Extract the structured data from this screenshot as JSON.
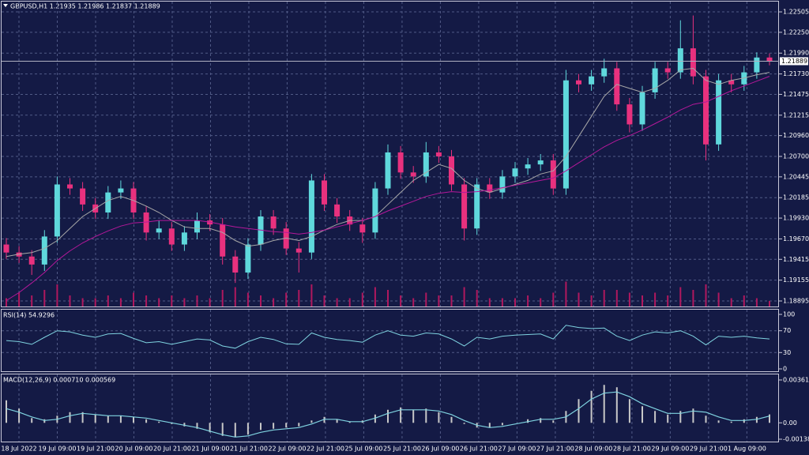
{
  "chart_data": [
    {
      "type": "candlestick",
      "title": "GBPUSD,H1  1.21935 1.21986 1.21837 1.21889",
      "open": [
        1.196,
        1.195,
        1.1945,
        1.1935,
        1.197,
        1.2035,
        1.203,
        1.201,
        1.2,
        1.2025,
        1.203,
        1.2,
        1.1975,
        1.198,
        1.196,
        1.1975,
        1.199,
        1.1985,
        1.1945,
        1.1925,
        1.196,
        1.1995,
        1.198,
        1.1955,
        1.195,
        1.204,
        1.201,
        1.1995,
        1.1985,
        1.1975,
        1.203,
        1.2075,
        1.205,
        1.2045,
        1.2075,
        1.207,
        1.2035,
        1.198,
        1.2035,
        1.2025,
        1.2045,
        1.2055,
        1.206,
        1.2065,
        1.203,
        1.2165,
        1.216,
        1.217,
        1.218,
        1.2135,
        1.211,
        1.215,
        1.218,
        1.2175,
        1.2205,
        1.217,
        1.2085,
        1.2165,
        1.216,
        1.2175,
        1.21935
      ],
      "high": [
        1.1968,
        1.1958,
        1.1953,
        1.1978,
        1.2045,
        1.2043,
        1.2038,
        1.2018,
        1.2033,
        1.204,
        1.2038,
        1.2008,
        1.199,
        1.1988,
        1.1983,
        1.2,
        1.1998,
        1.1993,
        1.1953,
        1.1968,
        1.2003,
        1.2003,
        1.1988,
        1.1963,
        1.2048,
        1.2048,
        1.2018,
        1.2003,
        1.1993,
        1.2038,
        1.2085,
        1.2083,
        1.2058,
        1.2088,
        1.2083,
        1.2078,
        1.2043,
        1.2043,
        1.2043,
        1.2053,
        1.2063,
        1.2068,
        1.2073,
        1.2073,
        1.2178,
        1.2173,
        1.2178,
        1.2192,
        1.2188,
        1.2143,
        1.2158,
        1.2188,
        1.2188,
        1.224,
        1.2246,
        1.2178,
        1.2173,
        1.2173,
        1.2183,
        1.22,
        1.21986
      ],
      "low": [
        1.1942,
        1.1937,
        1.1922,
        1.1927,
        1.1962,
        1.2022,
        1.2002,
        1.1992,
        1.1992,
        1.2017,
        1.1992,
        1.1965,
        1.1967,
        1.1952,
        1.1952,
        1.1967,
        1.1977,
        1.1935,
        1.1912,
        1.1917,
        1.1952,
        1.1972,
        1.1947,
        1.1925,
        1.1942,
        1.2002,
        1.1987,
        1.1977,
        1.1962,
        1.1967,
        1.2022,
        1.2042,
        1.2037,
        1.2037,
        1.2062,
        1.2027,
        1.1965,
        1.1972,
        1.2017,
        1.2017,
        1.2037,
        1.2047,
        1.2052,
        1.2022,
        1.2022,
        1.215,
        1.2152,
        1.2162,
        1.2127,
        1.21,
        1.2102,
        1.2142,
        1.2167,
        1.2167,
        1.216,
        1.2065,
        1.2077,
        1.215,
        1.2152,
        1.2167,
        1.21837
      ],
      "close": [
        1.195,
        1.1945,
        1.1935,
        1.197,
        1.2035,
        1.203,
        1.201,
        1.2,
        1.2025,
        1.203,
        1.2,
        1.1975,
        1.198,
        1.196,
        1.1975,
        1.199,
        1.1985,
        1.1945,
        1.1925,
        1.196,
        1.1995,
        1.198,
        1.1955,
        1.195,
        1.204,
        1.201,
        1.1995,
        1.1985,
        1.1975,
        1.203,
        1.2075,
        1.205,
        1.2045,
        1.2075,
        1.207,
        1.2035,
        1.198,
        1.2035,
        1.2025,
        1.2045,
        1.2055,
        1.206,
        1.2065,
        1.203,
        1.2165,
        1.216,
        1.217,
        1.218,
        1.2135,
        1.211,
        1.215,
        1.218,
        1.2175,
        1.2205,
        1.217,
        1.2085,
        1.2165,
        1.216,
        1.2175,
        1.21935,
        1.21889
      ],
      "volume": [
        3,
        5,
        4,
        6,
        8,
        4,
        3,
        3,
        4,
        3,
        5,
        4,
        3,
        4,
        3,
        4,
        3,
        6,
        7,
        5,
        4,
        3,
        5,
        6,
        8,
        4,
        3,
        3,
        5,
        7,
        6,
        4,
        3,
        5,
        4,
        4,
        7,
        6,
        3,
        3,
        3,
        4,
        3,
        5,
        9,
        5,
        4,
        6,
        6,
        5,
        4,
        5,
        4,
        7,
        6,
        8,
        5,
        3,
        4,
        3,
        2
      ],
      "overlays": [
        {
          "color": "#a8a8a8",
          "values": [
            1.1945,
            1.1948,
            1.195,
            1.1955,
            1.1965,
            1.198,
            1.1995,
            1.2005,
            1.2015,
            1.202,
            1.2015,
            1.2008,
            1.2,
            1.199,
            1.1982,
            1.198,
            1.198,
            1.1975,
            1.1965,
            1.1958,
            1.196,
            1.1965,
            1.1968,
            1.1965,
            1.197,
            1.1978,
            1.1985,
            1.199,
            1.199,
            1.1995,
            1.201,
            1.2025,
            1.204,
            1.205,
            1.206,
            1.2055,
            1.204,
            1.203,
            1.2025,
            1.203,
            1.2035,
            1.204,
            1.2048,
            1.2052,
            1.207,
            1.2095,
            1.212,
            1.2145,
            1.216,
            1.2155,
            1.215,
            1.2155,
            1.2165,
            1.2178,
            1.218,
            1.2165,
            1.216,
            1.2165,
            1.2168,
            1.2172,
            1.2175
          ]
        },
        {
          "color": "#b5189a",
          "values": [
            1.189,
            1.19,
            1.1912,
            1.1925,
            1.194,
            1.1952,
            1.1962,
            1.197,
            1.1977,
            1.1983,
            1.1987,
            1.1988,
            1.199,
            1.199,
            1.199,
            1.199,
            1.1988,
            1.1985,
            1.1982,
            1.198,
            1.1978,
            1.1976,
            1.1975,
            1.1973,
            1.1975,
            1.1978,
            1.1982,
            1.1986,
            1.199,
            1.1995,
            1.2002,
            1.2008,
            1.2014,
            1.202,
            1.2024,
            1.2026,
            1.2025,
            1.2026,
            1.2028,
            1.2031,
            1.2034,
            1.2037,
            1.204,
            1.2043,
            1.2052,
            1.2062,
            1.2072,
            1.2082,
            1.209,
            1.2096,
            1.2103,
            1.2111,
            1.2119,
            1.2128,
            1.2135,
            1.2138,
            1.2145,
            1.2152,
            1.2158,
            1.2164,
            1.217
          ]
        }
      ],
      "up_color": "#5fd8dc",
      "down_color": "#e8317e",
      "volume_color": "#b0185e",
      "ylim": [
        1.18826,
        1.22604
      ],
      "yticks": [
        1.22505,
        {
          "value": 1.2225,
          "label": "1.22250"
        },
        {
          "value": 1.2199,
          "label": "1.21990"
        },
        {
          "value": 1.2173,
          "label": "1.21730"
        },
        1.21475,
        1.21215,
        {
          "value": 1.2096,
          "label": "1.20960"
        },
        {
          "value": 1.207,
          "label": "1.20700"
        },
        1.20445,
        1.20185,
        {
          "value": 1.1993,
          "label": "1.19930"
        },
        {
          "value": 1.1967,
          "label": "1.19670"
        },
        1.19415,
        1.19155,
        1.18895
      ],
      "x_labels": [
        "18 Jul 2022",
        "19 Jul 09:00",
        "19 Jul 21:00",
        "20 Jul 09:00",
        "20 Jul 21:00",
        "21 Jul 09:00",
        "21 Jul 21:00",
        "22 Jul 09:00",
        "22 Jul 21:00",
        "25 Jul 09:00",
        "25 Jul 21:00",
        "26 Jul 09:00",
        "26 Jul 21:00",
        "27 Jul 09:00",
        "27 Jul 21:00",
        "28 Jul 09:00",
        "28 Jul 21:00",
        "29 Jul 09:00",
        "29 Jul 21:00",
        "1 Aug 09:00"
      ],
      "grid": true
    },
    {
      "type": "line",
      "title": "RSI(14) 54.9296",
      "color": "#7fd3e0",
      "values": [
        52,
        50,
        45,
        58,
        70,
        68,
        62,
        58,
        64,
        65,
        56,
        48,
        50,
        45,
        50,
        55,
        53,
        42,
        38,
        50,
        58,
        54,
        46,
        45,
        66,
        58,
        54,
        52,
        49,
        62,
        70,
        62,
        60,
        66,
        64,
        55,
        42,
        58,
        55,
        60,
        62,
        63,
        64,
        55,
        80,
        76,
        74,
        75,
        60,
        52,
        62,
        68,
        66,
        70,
        60,
        44,
        60,
        58,
        60,
        57,
        54.9296
      ],
      "ylim": [
        0,
        100
      ],
      "yticks": [
        100,
        70,
        30,
        0
      ]
    },
    {
      "type": "macd",
      "title": "MACD(12,26,9) 0.000710 0.000569",
      "color": "#c8c8c8",
      "signal_color": "#7fd3e0",
      "values": [
        0.0019,
        0.0012,
        0.0004,
        0.0003,
        0.0006,
        0.0009,
        0.0009,
        0.0007,
        0.0006,
        0.0006,
        0.0005,
        0.0003,
        0.0001,
        -0.0001,
        -0.0003,
        -0.0005,
        -0.0008,
        -0.0011,
        -0.0012,
        -0.001,
        -0.0006,
        -0.0005,
        -0.0004,
        -0.0003,
        0.0002,
        0.0005,
        0.0003,
        0.0001,
        0.0002,
        0.0007,
        0.0011,
        0.0013,
        0.0011,
        0.0012,
        0.0009,
        0.0005,
        -0.0001,
        -0.0004,
        -0.0004,
        -0.0002,
        0.0,
        0.0003,
        0.0004,
        0.0002,
        0.001,
        0.002,
        0.0027,
        0.0032,
        0.003,
        0.002,
        0.0014,
        0.001,
        0.0007,
        0.001,
        0.0012,
        0.0006,
        0.0002,
        0.0001,
        0.0003,
        0.0005,
        0.00071
      ],
      "signal": [
        0.0012,
        0.0009,
        0.0005,
        0.0002,
        0.0003,
        0.0006,
        0.0008,
        0.0007,
        0.0006,
        0.0006,
        0.0005,
        0.0004,
        0.0002,
        0.0,
        -0.0002,
        -0.0004,
        -0.0007,
        -0.001,
        -0.0012,
        -0.0011,
        -0.0008,
        -0.0006,
        -0.0005,
        -0.0004,
        -0.0001,
        0.0003,
        0.0003,
        0.0001,
        0.0001,
        0.0004,
        0.0008,
        0.0011,
        0.0011,
        0.0011,
        0.001,
        0.0007,
        0.0002,
        -0.0002,
        -0.0004,
        -0.0003,
        -0.0001,
        0.0001,
        0.0003,
        0.0003,
        0.0005,
        0.0012,
        0.002,
        0.0025,
        0.0026,
        0.0022,
        0.0016,
        0.0012,
        0.0008,
        0.0008,
        0.001,
        0.0009,
        0.0005,
        0.0002,
        0.0002,
        0.0003,
        0.000569
      ],
      "ylim": [
        -0.001381,
        0.003615
      ],
      "yticks": [
        0.003615,
        {
          "value": 0,
          "label": "0.00"
        },
        -0.001381
      ]
    }
  ]
}
